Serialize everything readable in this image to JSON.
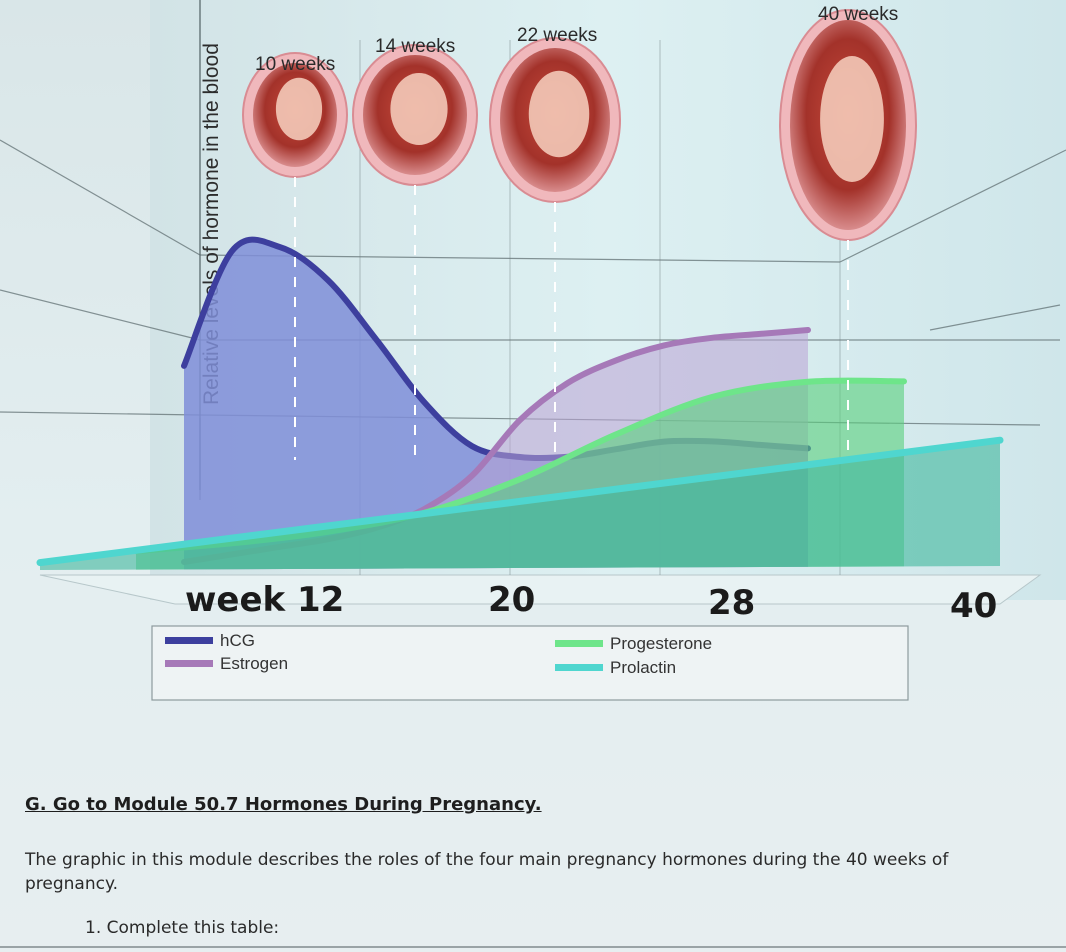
{
  "chart_data": {
    "type": "area",
    "ylabel": "Relative levels of hormone in the blood",
    "x_ticks": [
      {
        "value": 12,
        "label": "week 12"
      },
      {
        "value": 20,
        "label": "20"
      },
      {
        "value": 28,
        "label": "28"
      },
      {
        "value": 40,
        "label": "40"
      }
    ],
    "stage_labels": [
      {
        "week": 10,
        "label": "10 weeks"
      },
      {
        "week": 14,
        "label": "14 weeks"
      },
      {
        "week": 22,
        "label": "22 weeks"
      },
      {
        "week": 40,
        "label": "40 weeks"
      }
    ],
    "series": [
      {
        "name": "hCG",
        "color": "#3d3f9e",
        "fill": "#7f8ed8",
        "x": [
          6,
          8,
          10,
          12,
          14,
          16,
          18,
          20,
          22,
          24,
          26,
          28,
          30,
          32
        ],
        "y": [
          0.55,
          0.86,
          0.87,
          0.78,
          0.62,
          0.45,
          0.33,
          0.3,
          0.3,
          0.32,
          0.34,
          0.34,
          0.33,
          0.32
        ]
      },
      {
        "name": "Estrogen",
        "color": "#a679b8",
        "fill": "#b9a3d4",
        "x": [
          6,
          8,
          10,
          12,
          14,
          16,
          18,
          20,
          22,
          24,
          26,
          28,
          30,
          32
        ],
        "y": [
          0.02,
          0.04,
          0.06,
          0.08,
          0.11,
          0.16,
          0.25,
          0.4,
          0.5,
          0.56,
          0.6,
          0.62,
          0.63,
          0.64
        ]
      },
      {
        "name": "Progesterone",
        "color": "#6ee58a",
        "fill": "#58cf7c",
        "x": [
          4,
          8,
          12,
          16,
          20,
          24,
          28,
          32,
          36
        ],
        "y": [
          0.05,
          0.07,
          0.1,
          0.15,
          0.24,
          0.36,
          0.46,
          0.5,
          0.5
        ]
      },
      {
        "name": "Prolactin",
        "color": "#4fd6cf",
        "fill": "#3fb79c",
        "x": [
          0,
          40
        ],
        "y": [
          0.02,
          0.34
        ]
      }
    ],
    "legend_position": "bottom"
  },
  "instructions": {
    "heading": "G. Go to Module 50.7 Hormones During Pregnancy.",
    "paragraph": "The graphic in this module describes the roles of the four main pregnancy hormones during the 40 weeks of pregnancy.",
    "item": "1. Complete this table:"
  }
}
